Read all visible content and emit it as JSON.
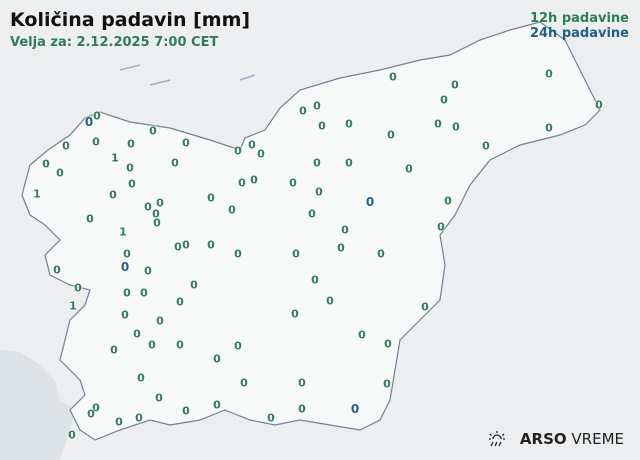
{
  "header": {
    "title": "Količina padavin [mm]",
    "valid_for": "Velja za: 2.12.2025 7:00 CET"
  },
  "legend": {
    "label_12h": "12h padavine",
    "label_24h": "24h padavine",
    "color_12h": "#2e7d5a",
    "color_24h": "#1f5f8f"
  },
  "logo": {
    "icon": "sun-rain-icon",
    "brand_bold": "ARSO",
    "brand_light": "VREME"
  },
  "stations": [
    {
      "v": "0",
      "t": "12h"
    },
    {
      "v": "0",
      "t": "24h"
    },
    {
      "v": "0",
      "t": "12h"
    },
    {
      "v": "0",
      "t": "12h"
    },
    {
      "v": "0",
      "t": "12h"
    },
    {
      "v": "1",
      "t": "12h"
    },
    {
      "v": "0",
      "t": "12h"
    },
    {
      "v": "1",
      "t": "12h"
    },
    {
      "v": "0",
      "t": "12h"
    },
    {
      "v": "0",
      "t": "12h"
    },
    {
      "v": "0",
      "t": "12h"
    },
    {
      "v": "0",
      "t": "12h"
    },
    {
      "v": "0",
      "t": "12h"
    },
    {
      "v": "0",
      "t": "12h"
    },
    {
      "v": "0",
      "t": "12h"
    },
    {
      "v": "0",
      "t": "12h"
    },
    {
      "v": "0",
      "t": "12h"
    },
    {
      "v": "0",
      "t": "12h"
    },
    {
      "v": "0",
      "t": "12h"
    },
    {
      "v": "0",
      "t": "12h"
    },
    {
      "v": "1",
      "t": "12h"
    },
    {
      "v": "0",
      "t": "12h"
    },
    {
      "v": "0",
      "t": "24h"
    },
    {
      "v": "0",
      "t": "12h"
    },
    {
      "v": "0",
      "t": "12h"
    },
    {
      "v": "0",
      "t": "12h"
    },
    {
      "v": "0",
      "t": "12h"
    },
    {
      "v": "0",
      "t": "12h"
    },
    {
      "v": "0",
      "t": "12h"
    },
    {
      "v": "0",
      "t": "12h"
    },
    {
      "v": "0",
      "t": "12h"
    },
    {
      "v": "0",
      "t": "12h"
    },
    {
      "v": "1",
      "t": "12h"
    },
    {
      "v": "0",
      "t": "12h"
    },
    {
      "v": "0",
      "t": "12h"
    },
    {
      "v": "0",
      "t": "12h"
    },
    {
      "v": "0",
      "t": "12h"
    },
    {
      "v": "0",
      "t": "12h"
    },
    {
      "v": "0",
      "t": "12h"
    },
    {
      "v": "0",
      "t": "12h"
    },
    {
      "v": "0",
      "t": "12h"
    },
    {
      "v": "0",
      "t": "12h"
    },
    {
      "v": "0",
      "t": "12h"
    },
    {
      "v": "0",
      "t": "12h"
    },
    {
      "v": "0",
      "t": "12h"
    },
    {
      "v": "0",
      "t": "12h"
    },
    {
      "v": "0",
      "t": "12h"
    },
    {
      "v": "0",
      "t": "12h"
    },
    {
      "v": "0",
      "t": "12h"
    },
    {
      "v": "0",
      "t": "12h"
    },
    {
      "v": "0",
      "t": "12h"
    },
    {
      "v": "0",
      "t": "12h"
    },
    {
      "v": "0",
      "t": "12h"
    },
    {
      "v": "0",
      "t": "12h"
    },
    {
      "v": "0",
      "t": "12h"
    },
    {
      "v": "0",
      "t": "12h"
    },
    {
      "v": "0",
      "t": "12h"
    },
    {
      "v": "0",
      "t": "12h"
    },
    {
      "v": "0",
      "t": "24h"
    },
    {
      "v": "0",
      "t": "12h"
    },
    {
      "v": "0",
      "t": "12h"
    },
    {
      "v": "0",
      "t": "12h"
    },
    {
      "v": "0",
      "t": "12h"
    },
    {
      "v": "0",
      "t": "12h"
    },
    {
      "v": "0",
      "t": "12h"
    },
    {
      "v": "0",
      "t": "12h"
    },
    {
      "v": "0",
      "t": "12h"
    },
    {
      "v": "0",
      "t": "12h"
    },
    {
      "v": "0",
      "t": "12h"
    },
    {
      "v": "0",
      "t": "12h"
    },
    {
      "v": "0",
      "t": "12h"
    },
    {
      "v": "0",
      "t": "12h"
    },
    {
      "v": "0",
      "t": "24h"
    },
    {
      "v": "0",
      "t": "12h"
    },
    {
      "v": "0",
      "t": "12h"
    },
    {
      "v": "0",
      "t": "12h"
    },
    {
      "v": "0",
      "t": "12h"
    },
    {
      "v": "0",
      "t": "12h"
    },
    {
      "v": "0",
      "t": "12h"
    },
    {
      "v": "0",
      "t": "12h"
    },
    {
      "v": "0",
      "t": "12h"
    },
    {
      "v": "0",
      "t": "12h"
    },
    {
      "v": "0",
      "t": "12h"
    },
    {
      "v": "0",
      "t": "12h"
    },
    {
      "v": "0",
      "t": "12h"
    },
    {
      "v": "0",
      "t": "12h"
    },
    {
      "v": "0",
      "t": "12h"
    },
    {
      "v": "0",
      "t": "12h"
    },
    {
      "v": "0",
      "t": "12h"
    },
    {
      "v": "0",
      "t": "12h"
    },
    {
      "v": "0",
      "t": "12h"
    },
    {
      "v": "0",
      "t": "12h"
    },
    {
      "v": "0",
      "t": "12h"
    },
    {
      "v": "0",
      "t": "12h"
    },
    {
      "v": "0",
      "t": "12h"
    },
    {
      "v": "0",
      "t": "12h"
    },
    {
      "v": "0",
      "t": "12h"
    },
    {
      "v": "0",
      "t": "12h"
    }
  ]
}
